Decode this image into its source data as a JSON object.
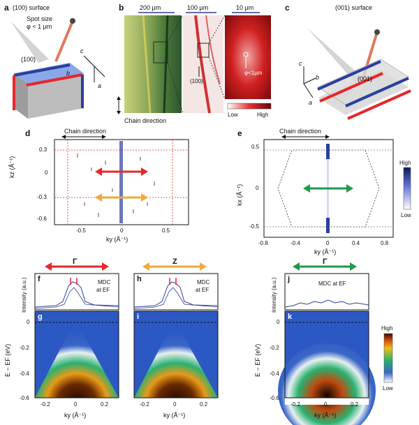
{
  "panels": {
    "a": {
      "letter": "a",
      "title": "(100) surface",
      "spot_line1": "Spot size",
      "spot_line2": "φ < 1 μm",
      "face": "(100)",
      "axis_c": "c",
      "axis_b": "b",
      "axis_a": "a"
    },
    "b": {
      "letter": "b",
      "scale1": "200 μm",
      "scale2": "100 μm",
      "scale3": "10 μm",
      "face": "(100)",
      "spot": "φ<1μm",
      "colorbar_low": "Low",
      "colorbar_high": "High",
      "chain_label": "Chain direction"
    },
    "c": {
      "letter": "c",
      "title": "(001) surface",
      "face": "(001)",
      "axis_c": "c",
      "axis_b": "b",
      "axis_a": "a"
    },
    "d": {
      "letter": "d",
      "chain_label": "Chain direction",
      "ylabel": "kz (Å⁻¹)",
      "xlabel": "ky (Å⁻¹)",
      "yticks": [
        "0.3",
        "0",
        "-0.3",
        "-0.6"
      ],
      "xticks": [
        "-0.5",
        "0",
        "0.5"
      ]
    },
    "e": {
      "letter": "e",
      "chain_label": "Chain direction",
      "ylabel": "kx (Å⁻¹)",
      "xlabel": "ky (Å⁻¹)",
      "yticks": [
        "0.5",
        "0",
        "-0.5"
      ],
      "xticks": [
        "-0.8",
        "-0.4",
        "0",
        "0.4",
        "0.8"
      ],
      "colorbar_high": "High",
      "colorbar_low": "Low"
    },
    "f": {
      "letter": "f",
      "symbol": "Γ",
      "mdc_line1": "MDC",
      "mdc_line2": "at EF",
      "ylabel": "Intensity (a.u.)"
    },
    "h": {
      "letter": "h",
      "symbol": "Z",
      "mdc_line1": "MDC",
      "mdc_line2": "at EF"
    },
    "j": {
      "letter": "j",
      "symbol": "Γ",
      "mdc": "MDC at EF",
      "ylabel": "Intensity (a.u.)"
    },
    "g": {
      "letter": "g",
      "ylabel": "E − EF (eV)",
      "yticks": [
        "0",
        "-0.2",
        "-0.4",
        "-0.6"
      ],
      "xticks": [
        "-0.2",
        "0",
        "0.2"
      ],
      "xlabel": "ky (Å⁻¹)"
    },
    "i": {
      "letter": "i",
      "xticks": [
        "-0.2",
        "0",
        "0.2"
      ],
      "xlabel": "ky (Å⁻¹)"
    },
    "k": {
      "letter": "k",
      "ylabel": "E − EF (eV)",
      "yticks": [
        "0",
        "-0.2",
        "-0.4",
        "-0.6"
      ],
      "xticks": [
        "-0.2",
        "0",
        "0.2"
      ],
      "xlabel": "ky (Å⁻¹)",
      "colorbar_high": "High",
      "colorbar_low": "Low"
    }
  },
  "colors": {
    "red": "#e8262b",
    "orange": "#f2a93b",
    "green": "#1f9a4a",
    "blue": "#2b3f9e",
    "bg_blue": "#2c58c4"
  }
}
